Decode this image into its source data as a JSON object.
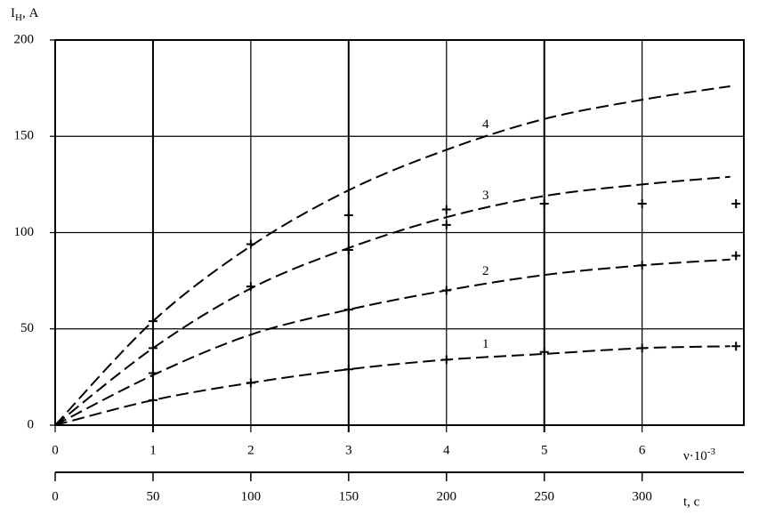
{
  "chart_data": {
    "type": "line",
    "y_label": "I",
    "y_label_sub": "Н",
    "y_label_unit": ",  А",
    "x_label": "ν·10",
    "x_label_exp": "-3",
    "x2_label": "t, c",
    "xlim": [
      0,
      7.04
    ],
    "xticks": [
      0,
      1,
      2,
      3,
      4,
      5,
      6
    ],
    "x2lim": [
      0,
      352
    ],
    "x2ticks": [
      0,
      50,
      100,
      150,
      200,
      250,
      300
    ],
    "ylim": [
      0,
      200
    ],
    "yticks": [
      0,
      50,
      100,
      150,
      200
    ],
    "grid": true,
    "color": "#000000",
    "x": [
      0,
      1,
      2,
      3,
      4,
      5,
      6,
      6.9
    ],
    "series": [
      {
        "name": "1",
        "values": [
          0,
          13,
          22,
          29,
          34,
          37,
          40,
          41
        ],
        "points_x": [
          1,
          2,
          3,
          4,
          5,
          6,
          6.96
        ],
        "points_y": [
          13,
          22,
          29,
          34,
          38,
          40,
          41
        ]
      },
      {
        "name": "2",
        "values": [
          0,
          26,
          47,
          60,
          70,
          78,
          83,
          86
        ],
        "points_x": [
          1,
          3,
          4,
          6,
          6.96
        ],
        "points_y": [
          27,
          60,
          70,
          83,
          88
        ]
      },
      {
        "name": "3",
        "values": [
          0,
          40,
          71,
          92,
          108,
          119,
          125,
          129
        ],
        "points_x": [
          1,
          2,
          3,
          4
        ],
        "points_y": [
          40,
          72,
          91,
          104
        ]
      },
      {
        "name": "4",
        "values": [
          0,
          54,
          93,
          122,
          143,
          159,
          169,
          176
        ],
        "points_x": [
          1,
          2,
          3,
          4,
          5,
          6,
          6.96
        ],
        "points_y": [
          54,
          94,
          109,
          112,
          115,
          115,
          115
        ]
      }
    ]
  }
}
